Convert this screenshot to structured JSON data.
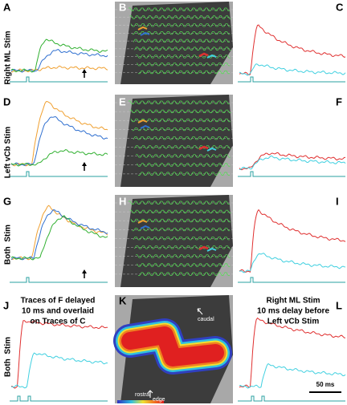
{
  "panel_labels": [
    "A",
    "B",
    "C",
    "D",
    "E",
    "F",
    "G",
    "H",
    "I",
    "J",
    "K",
    "L"
  ],
  "row_labels": [
    "Right ML Stim",
    "Left vCb Stim",
    "Both  Stim",
    "Both  Stim"
  ],
  "captions": {
    "left": [
      "Traces of F delayed",
      "10 ms and overlaid",
      "on Traces of C"
    ],
    "right": [
      "Right ML Stim",
      "10 ms delay before",
      "Left vCb Stim"
    ]
  },
  "image_annotations": {
    "caudal": "caudal",
    "rostral": "rostral",
    "edge": "edge"
  },
  "scale_bar": "50 ms"
}
